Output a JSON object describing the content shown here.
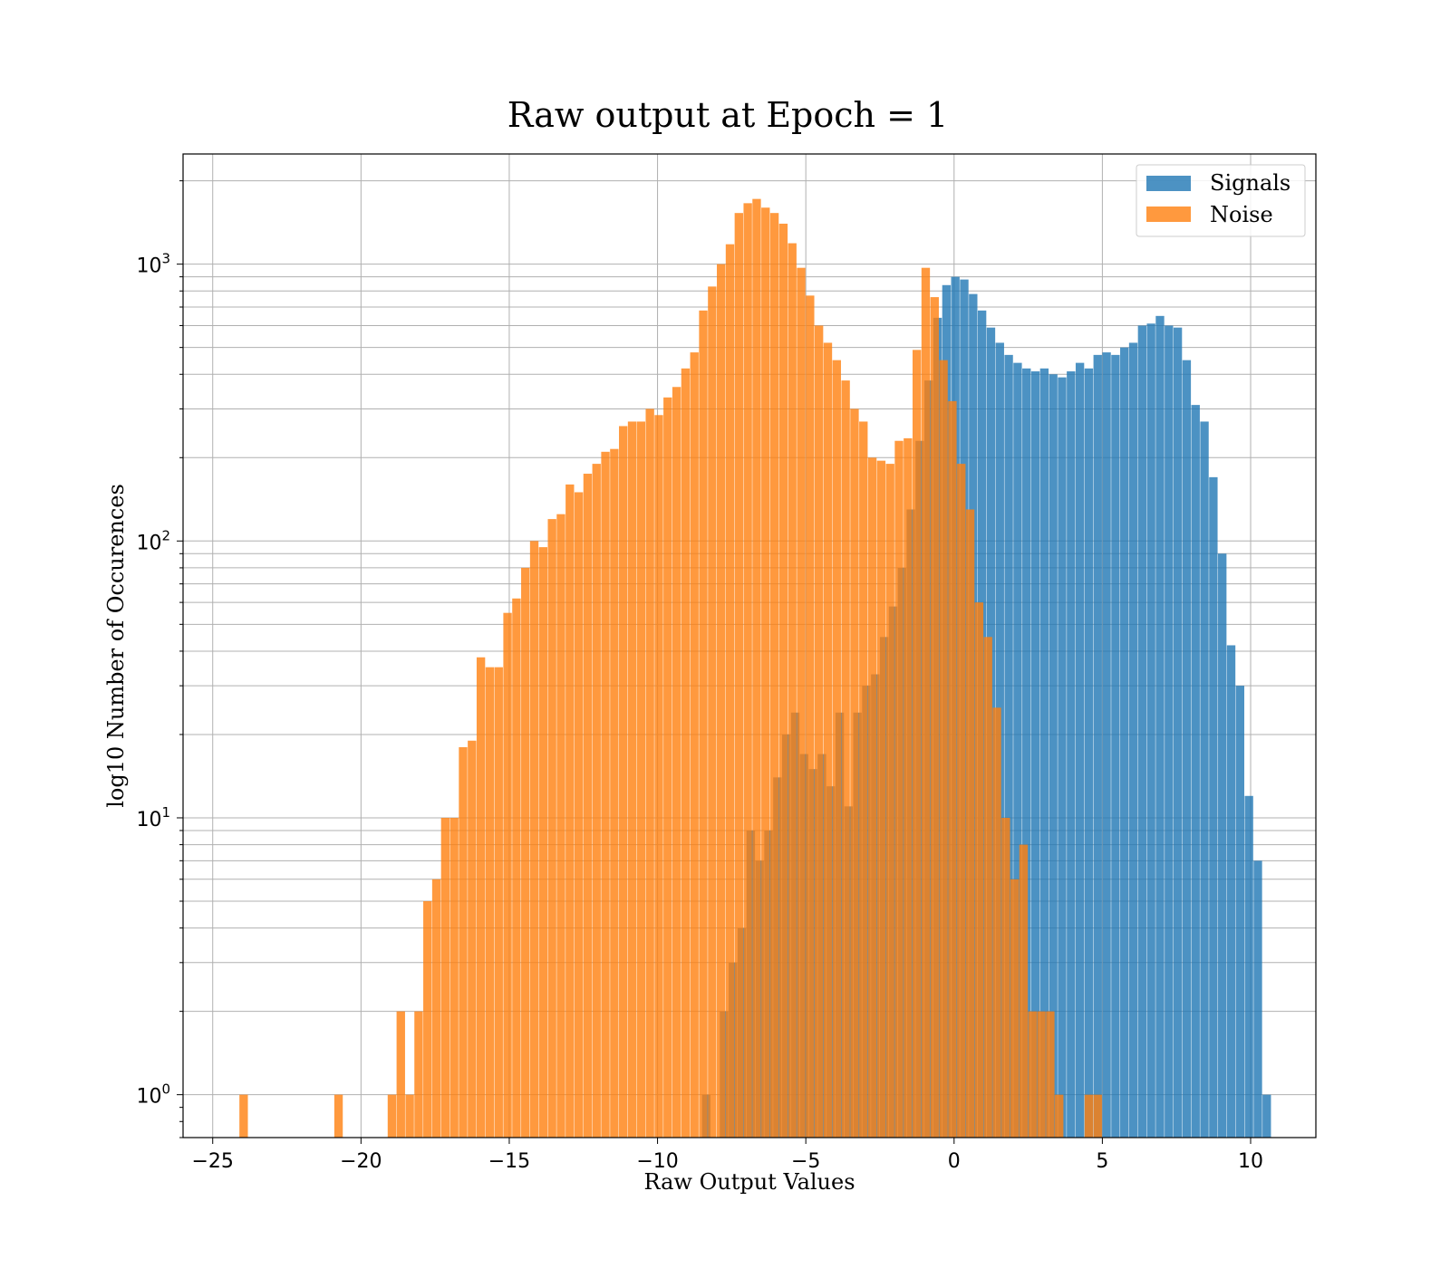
{
  "chart_data": {
    "type": "bar",
    "title": "Raw output at Epoch = 1",
    "xlabel": "Raw Output Values",
    "ylabel": "log10 Number of Occurences",
    "xlim": [
      -26,
      12.2
    ],
    "ylim": [
      0.7,
      2500
    ],
    "yscale": "log",
    "grid": true,
    "legend_position": "top-right",
    "xticks": [
      -25,
      -20,
      -15,
      -10,
      -5,
      0,
      5,
      10
    ],
    "xtick_labels": [
      "−25",
      "−20",
      "−15",
      "−10",
      "−5",
      "0",
      "5",
      "10"
    ],
    "yticks": [
      1,
      10,
      100,
      1000
    ],
    "ytick_labels": [
      {
        "base": "10",
        "exp": "0"
      },
      {
        "base": "10",
        "exp": "1"
      },
      {
        "base": "10",
        "exp": "2"
      },
      {
        "base": "10",
        "exp": "3"
      }
    ],
    "series": [
      {
        "name": "Signals",
        "color": "#1f77b4",
        "opacity": 0.8,
        "bin_width": 0.2857,
        "bins": [
          [
            -8.5,
            1
          ],
          [
            -7.9,
            2
          ],
          [
            -7.6,
            3
          ],
          [
            -7.3,
            4
          ],
          [
            -7.0,
            9
          ],
          [
            -6.7,
            7
          ],
          [
            -6.4,
            9
          ],
          [
            -6.1,
            14
          ],
          [
            -5.8,
            20
          ],
          [
            -5.5,
            24
          ],
          [
            -5.2,
            17
          ],
          [
            -4.9,
            15
          ],
          [
            -4.6,
            17
          ],
          [
            -4.3,
            13
          ],
          [
            -4.0,
            24
          ],
          [
            -3.7,
            11
          ],
          [
            -3.4,
            24
          ],
          [
            -3.1,
            30
          ],
          [
            -2.8,
            33
          ],
          [
            -2.5,
            45
          ],
          [
            -2.2,
            58
          ],
          [
            -1.9,
            80
          ],
          [
            -1.6,
            130
          ],
          [
            -1.3,
            230
          ],
          [
            -1.0,
            380
          ],
          [
            -0.7,
            640
          ],
          [
            -0.4,
            840
          ],
          [
            -0.1,
            900
          ],
          [
            0.2,
            880
          ],
          [
            0.5,
            780
          ],
          [
            0.8,
            680
          ],
          [
            1.1,
            590
          ],
          [
            1.4,
            520
          ],
          [
            1.7,
            470
          ],
          [
            2.0,
            440
          ],
          [
            2.3,
            420
          ],
          [
            2.6,
            410
          ],
          [
            2.9,
            420
          ],
          [
            3.2,
            400
          ],
          [
            3.5,
            390
          ],
          [
            3.8,
            410
          ],
          [
            4.1,
            440
          ],
          [
            4.4,
            420
          ],
          [
            4.7,
            470
          ],
          [
            5.0,
            480
          ],
          [
            5.3,
            470
          ],
          [
            5.6,
            500
          ],
          [
            5.9,
            520
          ],
          [
            6.2,
            600
          ],
          [
            6.5,
            610
          ],
          [
            6.8,
            650
          ],
          [
            7.1,
            600
          ],
          [
            7.4,
            590
          ],
          [
            7.7,
            450
          ],
          [
            8.0,
            310
          ],
          [
            8.3,
            270
          ],
          [
            8.6,
            170
          ],
          [
            8.9,
            90
          ],
          [
            9.2,
            42
          ],
          [
            9.5,
            30
          ],
          [
            9.8,
            12
          ],
          [
            10.1,
            7
          ],
          [
            10.4,
            1
          ]
        ]
      },
      {
        "name": "Noise",
        "color": "#ff7f0e",
        "opacity": 0.8,
        "bin_width": 0.2857,
        "bins": [
          [
            -24.1,
            1
          ],
          [
            -20.9,
            1
          ],
          [
            -19.1,
            1
          ],
          [
            -18.8,
            2
          ],
          [
            -18.5,
            1
          ],
          [
            -18.2,
            2
          ],
          [
            -17.9,
            5
          ],
          [
            -17.6,
            6
          ],
          [
            -17.3,
            10
          ],
          [
            -17.0,
            10
          ],
          [
            -16.7,
            18
          ],
          [
            -16.4,
            19
          ],
          [
            -16.1,
            38
          ],
          [
            -15.8,
            35
          ],
          [
            -15.5,
            35
          ],
          [
            -15.2,
            55
          ],
          [
            -14.9,
            62
          ],
          [
            -14.6,
            80
          ],
          [
            -14.3,
            100
          ],
          [
            -14.0,
            95
          ],
          [
            -13.7,
            120
          ],
          [
            -13.4,
            125
          ],
          [
            -13.1,
            160
          ],
          [
            -12.8,
            150
          ],
          [
            -12.5,
            175
          ],
          [
            -12.2,
            190
          ],
          [
            -11.9,
            210
          ],
          [
            -11.6,
            215
          ],
          [
            -11.3,
            260
          ],
          [
            -11.0,
            270
          ],
          [
            -10.7,
            270
          ],
          [
            -10.4,
            300
          ],
          [
            -10.1,
            285
          ],
          [
            -9.8,
            330
          ],
          [
            -9.5,
            360
          ],
          [
            -9.2,
            420
          ],
          [
            -8.9,
            480
          ],
          [
            -8.6,
            680
          ],
          [
            -8.3,
            830
          ],
          [
            -8.0,
            1000
          ],
          [
            -7.7,
            1180
          ],
          [
            -7.4,
            1530
          ],
          [
            -7.1,
            1660
          ],
          [
            -6.8,
            1720
          ],
          [
            -6.5,
            1600
          ],
          [
            -6.2,
            1530
          ],
          [
            -5.9,
            1400
          ],
          [
            -5.6,
            1190
          ],
          [
            -5.3,
            970
          ],
          [
            -5.0,
            770
          ],
          [
            -4.7,
            600
          ],
          [
            -4.4,
            520
          ],
          [
            -4.1,
            450
          ],
          [
            -3.8,
            380
          ],
          [
            -3.5,
            300
          ],
          [
            -3.2,
            270
          ],
          [
            -2.9,
            200
          ],
          [
            -2.6,
            195
          ],
          [
            -2.3,
            190
          ],
          [
            -2.0,
            230
          ],
          [
            -1.7,
            235
          ],
          [
            -1.4,
            490
          ],
          [
            -1.1,
            970
          ],
          [
            -0.8,
            760
          ],
          [
            -0.5,
            450
          ],
          [
            -0.2,
            320
          ],
          [
            0.1,
            190
          ],
          [
            0.4,
            130
          ],
          [
            0.7,
            60
          ],
          [
            1.0,
            45
          ],
          [
            1.3,
            25
          ],
          [
            1.6,
            10
          ],
          [
            1.9,
            6
          ],
          [
            2.2,
            8
          ],
          [
            2.5,
            2
          ],
          [
            2.8,
            2
          ],
          [
            3.1,
            2
          ],
          [
            3.4,
            1
          ],
          [
            4.4,
            1
          ],
          [
            4.7,
            1
          ]
        ]
      }
    ]
  }
}
